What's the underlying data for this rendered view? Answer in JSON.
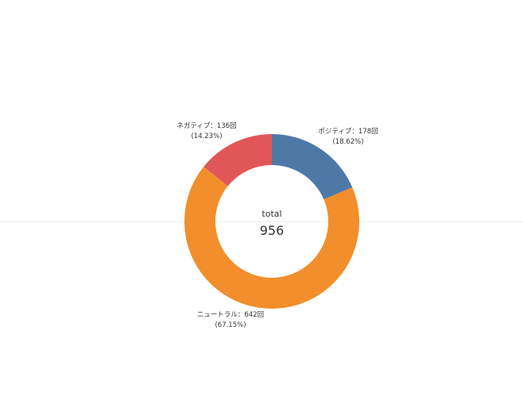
{
  "chart_data": {
    "type": "pie",
    "variant": "donut",
    "center_label": "total",
    "total": 956,
    "slices": [
      {
        "name": "ポジティブ",
        "value": 178,
        "unit": "回",
        "percent": "18.62%",
        "color": "#4e79a7"
      },
      {
        "name": "ニュートラル",
        "value": 642,
        "unit": "回",
        "percent": "67.15%",
        "color": "#f28e2b"
      },
      {
        "name": "ネガティブ",
        "value": 136,
        "unit": "回",
        "percent": "14.23%",
        "color": "#e15759"
      }
    ],
    "legend": "none",
    "grid": false
  }
}
